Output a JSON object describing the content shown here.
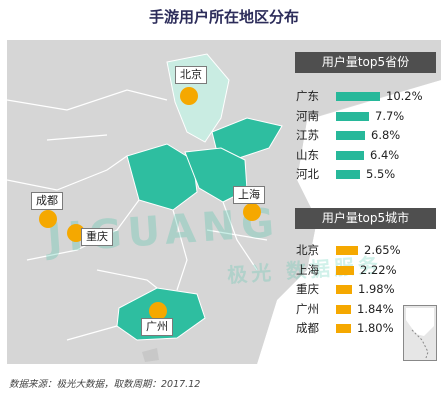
{
  "title": "手游用户所在地区分布",
  "footnote": "数据来源：极光大数据，取数周期：2017.12",
  "watermark": "JIGUANG",
  "watermark_cn": "极光 数据服务",
  "colors": {
    "province_bar": "#27b89a",
    "city_bar": "#f5a800",
    "highlight": "#2ebea0",
    "light_highlight": "#c9ece2",
    "header_bg": "#4f4f4f"
  },
  "chart_data": [
    {
      "type": "bar",
      "title": "用户量top5省份",
      "categories": [
        "广东",
        "河南",
        "江苏",
        "山东",
        "河北"
      ],
      "values": [
        10.2,
        7.7,
        6.8,
        6.4,
        5.5
      ],
      "value_labels": [
        "10.2%",
        "7.7%",
        "6.8%",
        "6.4%",
        "5.5%"
      ],
      "unit": "%",
      "orientation": "horizontal"
    },
    {
      "type": "bar",
      "title": "用户量top5城市",
      "categories": [
        "北京",
        "上海",
        "重庆",
        "广州",
        "成都"
      ],
      "values": [
        2.65,
        2.22,
        1.98,
        1.84,
        1.8
      ],
      "value_labels": [
        "2.65%",
        "2.22%",
        "1.98%",
        "1.84%",
        "1.80%"
      ],
      "unit": "%",
      "orientation": "horizontal"
    }
  ],
  "map": {
    "city_labels": [
      "北京",
      "上海",
      "成都",
      "重庆",
      "广州"
    ]
  }
}
